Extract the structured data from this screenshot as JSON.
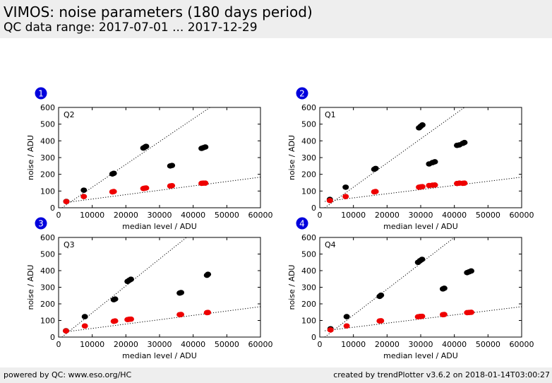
{
  "header": {
    "title": "VIMOS: noise parameters (180 days period)",
    "subtitle": "QC data range: 2017-07-01 ... 2017-12-29"
  },
  "footer": {
    "left": "powered by QC: www.eso.org/HC",
    "right": "created by trendPlotter v3.6.2 on 2018-01-14T03:00:27"
  },
  "colors": {
    "black_series": "#000000",
    "red_series": "#ee0000",
    "badge": "#0000dd"
  },
  "chart_data": [
    {
      "type": "scatter",
      "badge": "1",
      "label": "Q2",
      "xlabel": "median level / ADU",
      "ylabel": "noise / ADU",
      "xlim": [
        0,
        60000
      ],
      "ylim": [
        0,
        600
      ],
      "xticks": [
        "0",
        "10000",
        "20000",
        "30000",
        "40000",
        "50000",
        "60000"
      ],
      "yticks": [
        "0",
        "100",
        "200",
        "300",
        "400",
        "500",
        "600"
      ],
      "series": [
        {
          "color": "black",
          "points": [
            [
              2300,
              38
            ],
            [
              7500,
              105
            ],
            [
              16000,
              202
            ],
            [
              16400,
              206
            ],
            [
              25200,
              357
            ],
            [
              25600,
              362
            ],
            [
              26000,
              367
            ],
            [
              33200,
              250
            ],
            [
              33700,
              253
            ],
            [
              42500,
              355
            ],
            [
              43000,
              359
            ],
            [
              43600,
              363
            ]
          ]
        },
        {
          "color": "red",
          "points": [
            [
              2300,
              37
            ],
            [
              7500,
              67
            ],
            [
              16000,
              95
            ],
            [
              16400,
              97
            ],
            [
              25200,
              115
            ],
            [
              25600,
              117
            ],
            [
              26000,
              118
            ],
            [
              33200,
              130
            ],
            [
              33700,
              132
            ],
            [
              42500,
              146
            ],
            [
              43000,
              147
            ],
            [
              43600,
              147
            ]
          ]
        }
      ],
      "fits": [
        {
          "points": [
            [
              1000,
              0
            ],
            [
              45000,
              600
            ]
          ]
        },
        {
          "points": [
            [
              1500,
              30
            ],
            [
              60000,
              183
            ]
          ]
        }
      ]
    },
    {
      "type": "scatter",
      "badge": "2",
      "label": "Q1",
      "xlabel": "median level / ADU",
      "ylabel": "noise / ADU",
      "xlim": [
        0,
        60000
      ],
      "ylim": [
        0,
        600
      ],
      "xticks": [
        "0",
        "10000",
        "20000",
        "30000",
        "40000",
        "50000",
        "60000"
      ],
      "yticks": [
        "0",
        "100",
        "200",
        "300",
        "400",
        "500",
        "600"
      ],
      "series": [
        {
          "color": "black",
          "points": [
            [
              3000,
              50
            ],
            [
              7700,
              123
            ],
            [
              16200,
              230
            ],
            [
              16600,
              235
            ],
            [
              29500,
              478
            ],
            [
              30000,
              487
            ],
            [
              30500,
              495
            ],
            [
              32500,
              262
            ],
            [
              33500,
              270
            ],
            [
              34200,
              275
            ],
            [
              40800,
              373
            ],
            [
              41500,
              376
            ],
            [
              42500,
              385
            ],
            [
              43000,
              390
            ]
          ]
        },
        {
          "color": "red",
          "points": [
            [
              3000,
              43
            ],
            [
              7700,
              67
            ],
            [
              16200,
              95
            ],
            [
              16600,
              97
            ],
            [
              29500,
              123
            ],
            [
              30000,
              125
            ],
            [
              30500,
              126
            ],
            [
              32500,
              133
            ],
            [
              33500,
              135
            ],
            [
              34200,
              136
            ],
            [
              40800,
              145
            ],
            [
              41500,
              147
            ],
            [
              42500,
              146
            ],
            [
              43000,
              147
            ]
          ]
        }
      ],
      "fits": [
        {
          "points": [
            [
              1500,
              0
            ],
            [
              43000,
              600
            ]
          ]
        },
        {
          "points": [
            [
              1500,
              38
            ],
            [
              60000,
              183
            ]
          ]
        }
      ]
    },
    {
      "type": "scatter",
      "badge": "3",
      "label": "Q3",
      "xlabel": "median level / ADU",
      "ylabel": "noise / ADU",
      "xlim": [
        0,
        60000
      ],
      "ylim": [
        0,
        600
      ],
      "xticks": [
        "0",
        "10000",
        "20000",
        "30000",
        "40000",
        "50000",
        "60000"
      ],
      "yticks": [
        "0",
        "100",
        "200",
        "300",
        "400",
        "500",
        "600"
      ],
      "series": [
        {
          "color": "black",
          "points": [
            [
              2200,
              38
            ],
            [
              7800,
              123
            ],
            [
              16400,
              225
            ],
            [
              16800,
              229
            ],
            [
              20500,
              335
            ],
            [
              21000,
              342
            ],
            [
              21500,
              348
            ],
            [
              36000,
              265
            ],
            [
              36400,
              268
            ],
            [
              44100,
              372
            ],
            [
              44400,
              378
            ]
          ]
        },
        {
          "color": "red",
          "points": [
            [
              2200,
              37
            ],
            [
              7800,
              67
            ],
            [
              16400,
              95
            ],
            [
              16800,
              97
            ],
            [
              20500,
              105
            ],
            [
              21000,
              107
            ],
            [
              21500,
              108
            ],
            [
              36000,
              135
            ],
            [
              36400,
              136
            ],
            [
              44100,
              147
            ],
            [
              44400,
              148
            ]
          ]
        }
      ],
      "fits": [
        {
          "points": [
            [
              1000,
              0
            ],
            [
              38000,
              600
            ]
          ]
        },
        {
          "points": [
            [
              1500,
              30
            ],
            [
              60000,
              183
            ]
          ]
        }
      ]
    },
    {
      "type": "scatter",
      "badge": "4",
      "label": "Q4",
      "xlabel": "median level / ADU",
      "ylabel": "noise / ADU",
      "xlim": [
        0,
        60000
      ],
      "ylim": [
        0,
        600
      ],
      "xticks": [
        "0",
        "10000",
        "20000",
        "30000",
        "40000",
        "50000",
        "60000"
      ],
      "yticks": [
        "0",
        "100",
        "200",
        "300",
        "400",
        "500",
        "600"
      ],
      "series": [
        {
          "color": "black",
          "points": [
            [
              3200,
              50
            ],
            [
              8000,
              123
            ],
            [
              17800,
              245
            ],
            [
              18200,
              252
            ],
            [
              29200,
              450
            ],
            [
              29800,
              460
            ],
            [
              30400,
              468
            ],
            [
              36600,
              290
            ],
            [
              37000,
              294
            ],
            [
              43800,
              388
            ],
            [
              44400,
              393
            ],
            [
              45000,
              398
            ]
          ]
        },
        {
          "color": "red",
          "points": [
            [
              3200,
              43
            ],
            [
              8000,
              67
            ],
            [
              17800,
              97
            ],
            [
              18200,
              98
            ],
            [
              29200,
              122
            ],
            [
              29800,
              124
            ],
            [
              30400,
              125
            ],
            [
              36600,
              135
            ],
            [
              37000,
              136
            ],
            [
              43800,
              147
            ],
            [
              44400,
              148
            ],
            [
              45000,
              149
            ]
          ]
        }
      ],
      "fits": [
        {
          "points": [
            [
              1500,
              0
            ],
            [
              40000,
              600
            ]
          ]
        },
        {
          "points": [
            [
              1500,
              38
            ],
            [
              60000,
              183
            ]
          ]
        }
      ]
    }
  ]
}
